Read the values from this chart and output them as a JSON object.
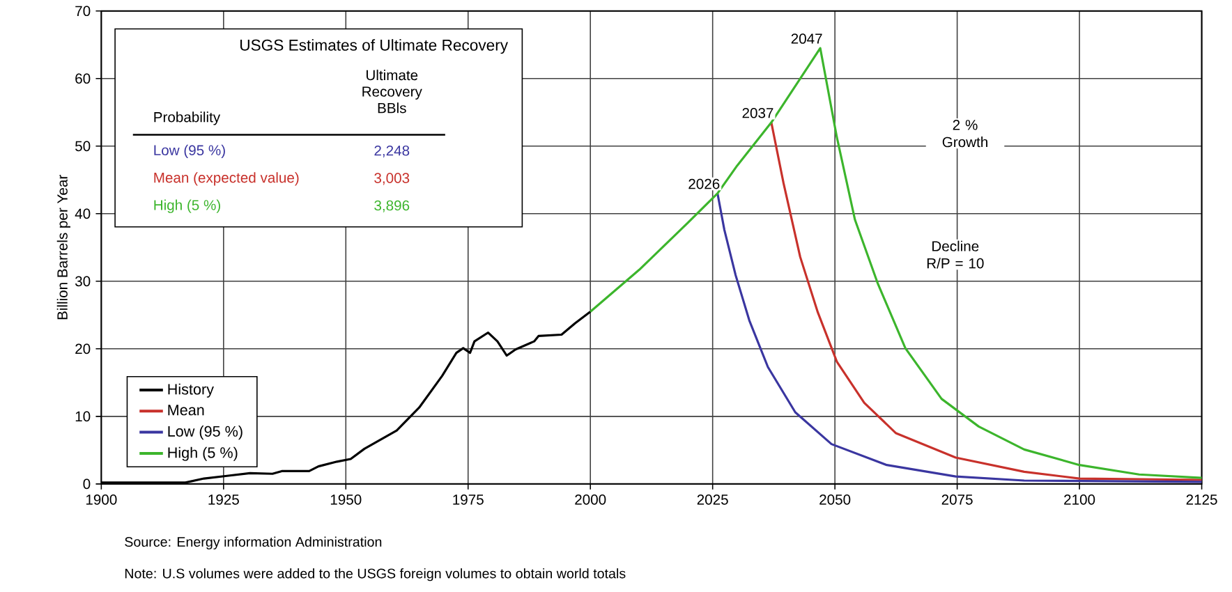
{
  "chart_data": {
    "type": "line",
    "ylabel": "Billion Barrels per Year",
    "xlim": [
      1900,
      2125
    ],
    "ylim": [
      0,
      70
    ],
    "xticks": [
      1900,
      1925,
      1950,
      1975,
      2000,
      2025,
      2050,
      2075,
      2100,
      2125
    ],
    "yticks": [
      0,
      10,
      20,
      30,
      40,
      50,
      60,
      70
    ],
    "grid": true,
    "legend": "bottom left",
    "series": [
      {
        "name": "History",
        "color": "#000000",
        "x": [
          1900,
          1917.2,
          1921,
          1925.7,
          1930.4,
          1935,
          1936.9,
          1942.5,
          1944.4,
          1948.2,
          1951,
          1953.8,
          1960.4,
          1965,
          1969.7,
          1972.6,
          1974,
          1975.4,
          1976.3,
          1979.1,
          1981,
          1982.9,
          1984.7,
          1988.5,
          1989.4,
          1994.1,
          1996.9,
          2000
        ],
        "values": [
          0.2,
          0.2,
          0.8,
          1.2,
          1.6,
          1.5,
          1.9,
          1.9,
          2.6,
          3.3,
          3.7,
          5.2,
          7.9,
          11.3,
          16,
          19.4,
          20.1,
          19.4,
          21.1,
          22.4,
          21.1,
          19,
          19.9,
          21.1,
          21.9,
          22.1,
          23.8,
          25.5
        ]
      },
      {
        "name": "Mean",
        "color": "#c8312b",
        "x": [
          2037,
          2039.5,
          2042.9,
          2046.5,
          2050.4,
          2056,
          2062.5,
          2074.7,
          2088.7,
          2100,
          2125
        ],
        "values": [
          53.5,
          44.5,
          33.6,
          25.4,
          18.1,
          12,
          7.5,
          3.9,
          1.8,
          0.8,
          0.6
        ]
      },
      {
        "name": "Low (95 %)",
        "color": "#3a36a0",
        "x": [
          2026,
          2027.4,
          2029.7,
          2032.5,
          2036.3,
          2041.9,
          2049.3,
          2060.6,
          2074.7,
          2088.7,
          2125
        ],
        "values": [
          43,
          37.6,
          30.9,
          24.2,
          17.3,
          10.6,
          5.9,
          2.8,
          1.1,
          0.5,
          0.3
        ]
      },
      {
        "name": "High (5 %)",
        "color": "#3cb52c",
        "x": [
          2000,
          2010,
          2020,
          2026,
          2030,
          2037,
          2040,
          2047,
          2050.4,
          2054.1,
          2058.8,
          2064.4,
          2071.8,
          2079.4,
          2088.7,
          2100,
          2112.2,
          2125
        ],
        "values": [
          25.5,
          31.7,
          38.7,
          43,
          47.1,
          53.5,
          56.8,
          64.5,
          51.3,
          39.1,
          29.6,
          20.1,
          12.6,
          8.5,
          5.1,
          2.8,
          1.4,
          0.9
        ]
      }
    ],
    "annotations": [
      "USGS Estimates of Ultimate Recovery",
      "Ultimate Recovery BBls",
      "Probability",
      "Low (95 %)",
      "2,248",
      "Mean (expected value)",
      "3,003",
      "High (5 %)",
      "3,896",
      {
        "text": "2026",
        "x": 2026,
        "y": 43
      },
      {
        "text": "2037",
        "x": 2037,
        "y": 53.5
      },
      {
        "text": "2047",
        "x": 2047,
        "y": 64.5
      },
      "2 % Growth",
      "Decline R/P = 10",
      "Source: Energy information Administration",
      "Note: U.S volumes were added to the USGS foreign volumes to obtain world totals"
    ]
  }
}
